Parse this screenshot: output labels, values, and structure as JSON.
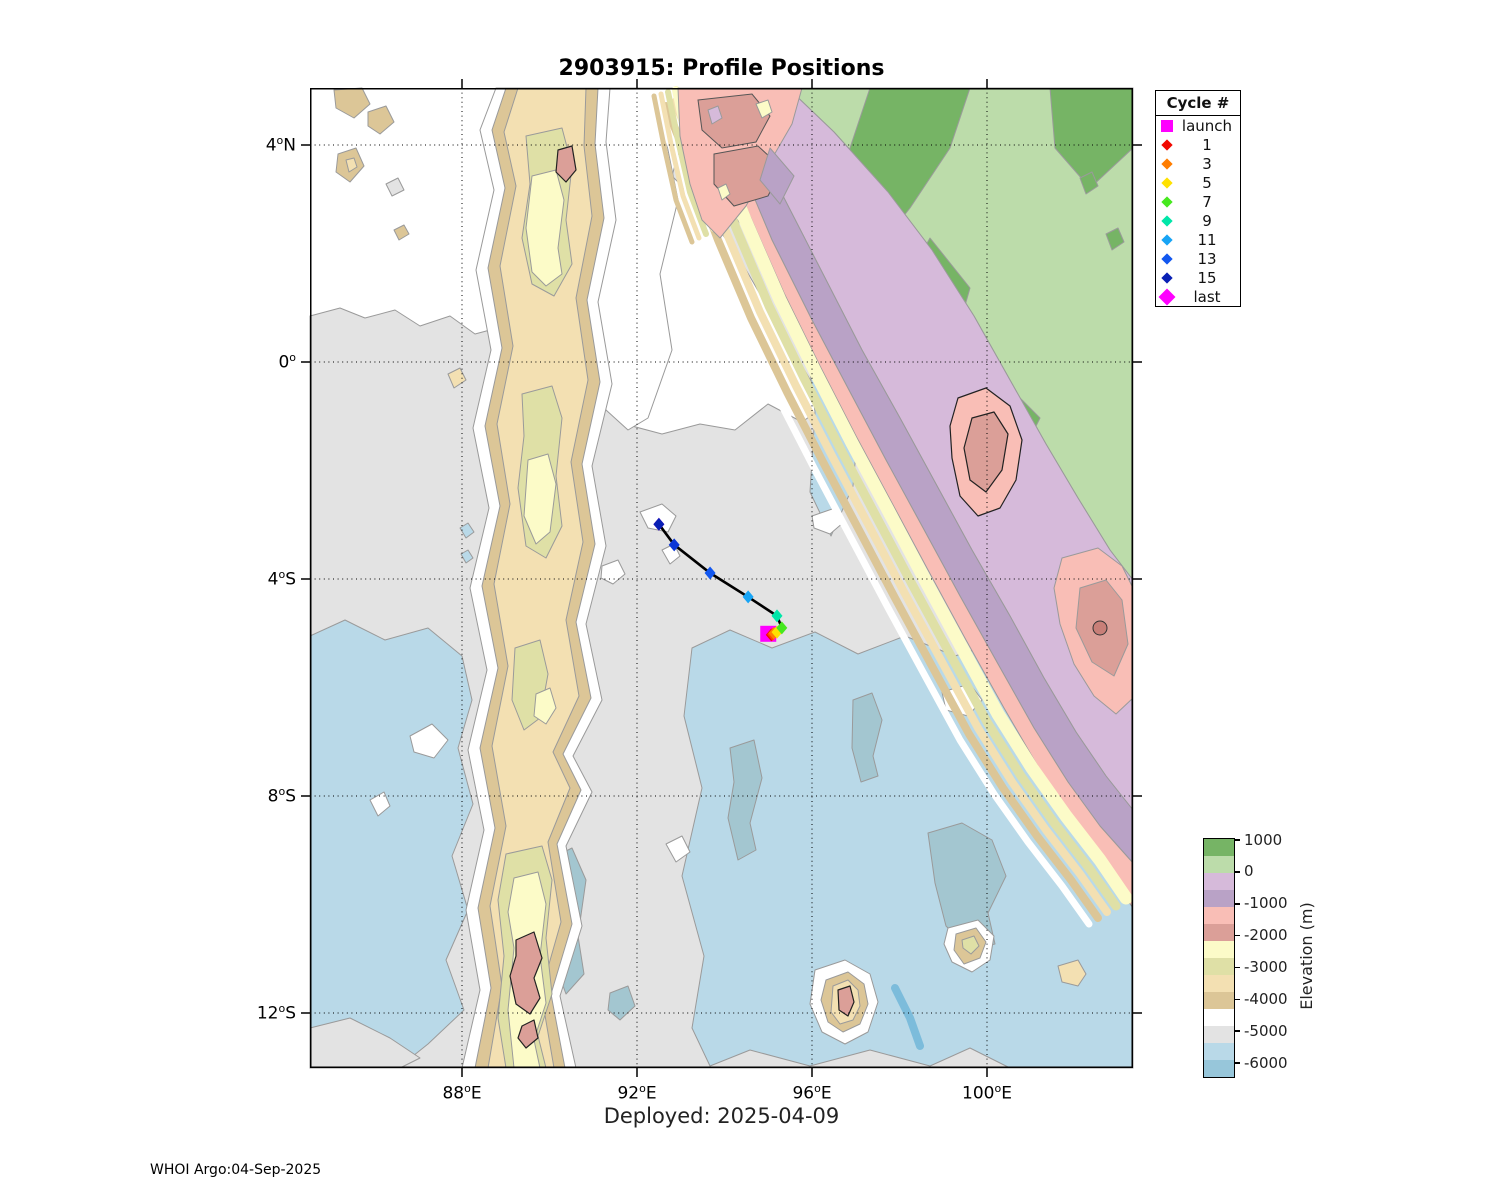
{
  "title": "2903915: Profile Positions",
  "subtitle": "Deployed: 2025-04-09",
  "footer": "WHOI Argo:04-Sep-2025",
  "axes": {
    "x_ticks": [
      {
        "deg": "88",
        "hem": "E",
        "lon": 88
      },
      {
        "deg": "92",
        "hem": "E",
        "lon": 92
      },
      {
        "deg": "96",
        "hem": "E",
        "lon": 96
      },
      {
        "deg": "100",
        "hem": "E",
        "lon": 100
      }
    ],
    "y_ticks": [
      {
        "deg": "4",
        "hem": "N",
        "lat": 4
      },
      {
        "deg": "0",
        "hem": "",
        "lat": 0
      },
      {
        "deg": "4",
        "hem": "S",
        "lat": -4
      },
      {
        "deg": "8",
        "hem": "S",
        "lat": -8
      },
      {
        "deg": "12",
        "hem": "S",
        "lat": -12
      }
    ]
  },
  "legend": {
    "title": "Cycle #",
    "items": [
      {
        "label": "launch",
        "color": "#ff00ff",
        "shape": "square"
      },
      {
        "label": "1",
        "color": "#f10800",
        "shape": "diamond"
      },
      {
        "label": "3",
        "color": "#ff7d00",
        "shape": "diamond"
      },
      {
        "label": "5",
        "color": "#ffe100",
        "shape": "diamond"
      },
      {
        "label": "7",
        "color": "#46e81e",
        "shape": "diamond"
      },
      {
        "label": "9",
        "color": "#00e6a8",
        "shape": "diamond"
      },
      {
        "label": "11",
        "color": "#17a4f5",
        "shape": "diamond"
      },
      {
        "label": "13",
        "color": "#1257ef",
        "shape": "diamond"
      },
      {
        "label": "15",
        "color": "#0920b4",
        "shape": "diamond"
      },
      {
        "label": "last",
        "color": "#ff00ff",
        "shape": "diamond-large"
      }
    ]
  },
  "colorbar": {
    "label": "Elevation (m)",
    "ticks": [
      "1000",
      "0",
      "-1000",
      "-2000",
      "-3000",
      "-4000",
      "-5000",
      "-6000"
    ],
    "colors": [
      "#76b465",
      "#bcdcaa",
      "#d6bada",
      "#b9a2c6",
      "#f9beb6",
      "#db9f98",
      "#fcfbc8",
      "#dfe0a6",
      "#f3e0b2",
      "#dcc697",
      "#ffffff",
      "#e3e3e3",
      "#b9d9e8",
      "#97c6da"
    ]
  },
  "chart_data": {
    "type": "scatter",
    "title": "2903915: Profile Positions",
    "x_axis_ticks": [
      "88E",
      "92E",
      "96E",
      "100E"
    ],
    "y_axis_ticks": [
      "4N",
      "0",
      "4S",
      "8S",
      "12S"
    ],
    "x_range_lon": [
      84.5,
      103.3
    ],
    "y_range_lat": [
      -13.0,
      5.05
    ],
    "grid": "dotted",
    "legend_title": "Cycle #",
    "colorbar_label": "Elevation (m)",
    "colorbar_ticks_m": [
      1000,
      0,
      -1000,
      -2000,
      -3000,
      -4000,
      -5000,
      -6000
    ],
    "deployed_date": "2025-04-09",
    "plot_date": "04-Sep-2025",
    "series": [
      {
        "name": "float-trajectory",
        "line_color": "#000000",
        "points": [
          {
            "cycle": "launch",
            "lon": 95.0,
            "lat": -5.01,
            "color": "#ff00ff",
            "shape": "square"
          },
          {
            "cycle": "1",
            "lon": 95.07,
            "lat": -5.03,
            "color": "#f10800",
            "shape": "diamond"
          },
          {
            "cycle": "2",
            "lon": 95.1,
            "lat": -5.02,
            "color": "#ff4400",
            "shape": "diamond"
          },
          {
            "cycle": "3",
            "lon": 95.13,
            "lat": -5.0,
            "color": "#ff7d00",
            "shape": "diamond"
          },
          {
            "cycle": "5",
            "lon": 95.2,
            "lat": -4.98,
            "color": "#ffe100",
            "shape": "diamond"
          },
          {
            "cycle": "7",
            "lon": 95.31,
            "lat": -4.9,
            "color": "#46e81e",
            "shape": "diamond"
          },
          {
            "cycle": "9",
            "lon": 95.2,
            "lat": -4.68,
            "color": "#00e6a8",
            "shape": "diamond"
          },
          {
            "cycle": "11",
            "lon": 94.54,
            "lat": -4.33,
            "color": "#17a4f5",
            "shape": "diamond"
          },
          {
            "cycle": "13",
            "lon": 93.67,
            "lat": -3.89,
            "color": "#1257ef",
            "shape": "diamond"
          },
          {
            "cycle": "14",
            "lon": 92.85,
            "lat": -3.37,
            "color": "#0a36d6",
            "shape": "diamond"
          },
          {
            "cycle": "last",
            "lon": 92.5,
            "lat": -2.99,
            "color": "#ff00ff",
            "shape": "diamond"
          },
          {
            "cycle": "15",
            "lon": 92.5,
            "lat": -2.99,
            "color": "#0920b4",
            "shape": "diamond"
          }
        ]
      }
    ]
  }
}
